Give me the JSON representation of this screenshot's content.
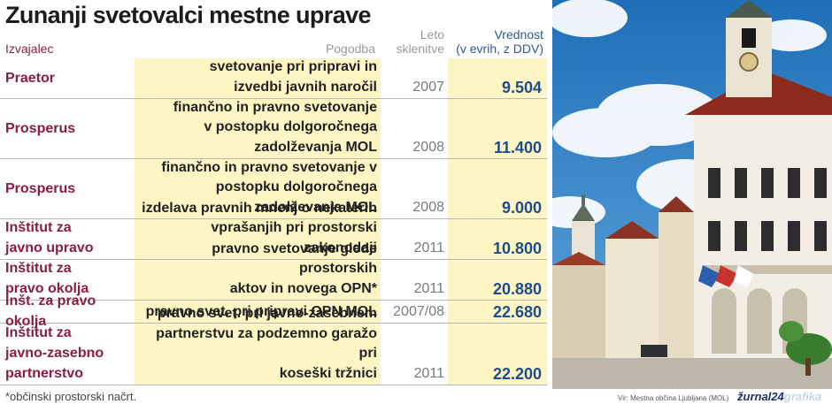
{
  "title": "Zunanji svetovalci mestne uprave",
  "headers": {
    "performer": "Izvajalec",
    "contract": "Pogodba",
    "year": [
      "Leto",
      "sklenitve"
    ],
    "value": [
      "Vrednost",
      "(v evrih, z DDV)"
    ]
  },
  "rows": [
    {
      "performer": [
        "Praetor"
      ],
      "contract": [
        "svetovanje pri pripravi in",
        "izvedbi javnih naročil"
      ],
      "year": "2007",
      "value": "9.504"
    },
    {
      "performer": [
        "Prosperus"
      ],
      "contract": [
        "finančno in pravno svetovanje",
        "v postopku dolgoročnega",
        "zadolževanja MOL"
      ],
      "year": "2008",
      "value": "11.400"
    },
    {
      "performer": [
        "Prosperus"
      ],
      "contract": [
        "finančno in pravno svetovanje v",
        "postopku dolgoročnega",
        "zadolževanja MOL"
      ],
      "year": "2008",
      "value": "9.000"
    },
    {
      "performer": [
        "Inštitut za",
        "javno upravo"
      ],
      "contract": [
        "izdelava pravnih mnenj o nekaterih",
        "vprašanjih pri prostorski zakonodaji"
      ],
      "year": "2011",
      "value": "10.800"
    },
    {
      "performer": [
        "Inštitut za",
        "pravo okolja"
      ],
      "contract": [
        "pravno svetovanje glede prostorskih",
        "aktov in novega OPN*"
      ],
      "year": "2011",
      "value": "20.880"
    },
    {
      "performer": [
        "Inšt. za pravo okolja"
      ],
      "contract": [
        "pravno svet. pri pripravi OPN MOL"
      ],
      "year": "2007/08",
      "value": "22.680"
    },
    {
      "performer": [
        "Inštitut za",
        "javno-zasebno",
        "partnerstvo"
      ],
      "contract": [
        "pravno svet. pri javno-zasebnem",
        "partnerstvu za podzemno garažo pri",
        "koseški tržnici"
      ],
      "year": "2011",
      "value": "22.200"
    }
  ],
  "footnote": "*občinski prostorski načrt.",
  "source": "Vir: Mestna občina Ljubljana (MOL)",
  "brand": {
    "main": "žurnal24",
    "accent": "grafika"
  },
  "colors": {
    "performer": "#8a1c46",
    "value": "#1e4d8c",
    "highlight": "#fdf5c3",
    "sky": "#2f86c9",
    "building": "#f2eee6",
    "roof": "#8c2a1e"
  },
  "photo": {
    "description_icon": "ljubljana-town-hall-photo"
  }
}
